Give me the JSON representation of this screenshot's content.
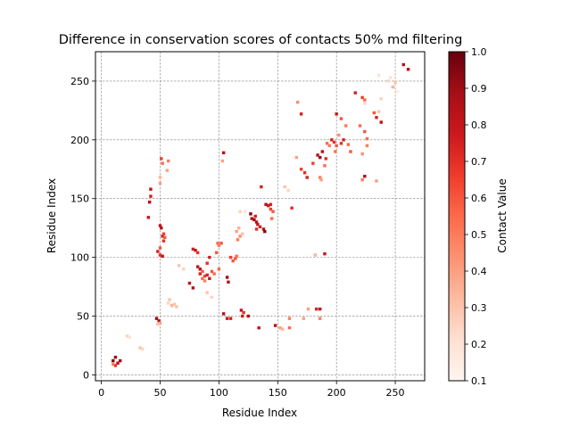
{
  "chart_data": {
    "type": "heatmap",
    "title": "Difference in conservation scores of contacts 50% md filtering",
    "xlabel": "Residue Index",
    "ylabel": "Residue Index",
    "xlim": [
      -5,
      275
    ],
    "ylim": [
      -5,
      275
    ],
    "xticks": [
      0,
      50,
      100,
      150,
      200,
      250
    ],
    "yticks": [
      0,
      50,
      100,
      150,
      200,
      250
    ],
    "grid": true,
    "colormap": "Reds",
    "colormap_stops": [
      "#fff5f0",
      "#fee0d2",
      "#fcbba1",
      "#fc9272",
      "#fb6a4a",
      "#ef3b2c",
      "#cb181d",
      "#a50f15",
      "#67000d"
    ],
    "colorbar": {
      "label": "Contact Value",
      "min": 0.1,
      "max": 1.0,
      "ticks": [
        0.1,
        0.2,
        0.3,
        0.4,
        0.5,
        0.6,
        0.7,
        0.8,
        0.9,
        1.0
      ]
    },
    "points": [
      [
        10,
        12,
        0.95
      ],
      [
        12,
        15,
        0.9
      ],
      [
        14,
        10,
        0.85
      ],
      [
        16,
        12,
        0.9
      ],
      [
        12,
        8,
        0.7
      ],
      [
        10,
        9,
        0.5
      ],
      [
        22,
        33,
        0.25
      ],
      [
        24,
        32,
        0.2
      ],
      [
        33,
        23,
        0.3
      ],
      [
        35,
        22,
        0.25
      ],
      [
        47,
        48,
        0.9
      ],
      [
        49,
        46,
        0.85
      ],
      [
        50,
        44,
        0.4
      ],
      [
        48,
        43,
        0.3
      ],
      [
        40,
        134,
        0.8
      ],
      [
        41,
        147,
        0.85
      ],
      [
        42,
        152,
        0.75
      ],
      [
        42,
        158,
        0.8
      ],
      [
        48,
        105,
        0.75
      ],
      [
        50,
        102,
        0.7
      ],
      [
        52,
        101,
        0.8
      ],
      [
        50,
        108,
        0.6
      ],
      [
        50,
        127,
        0.8
      ],
      [
        51,
        125,
        0.85
      ],
      [
        52,
        118,
        0.75
      ],
      [
        53,
        114,
        0.7
      ],
      [
        53,
        120,
        0.65
      ],
      [
        54,
        117,
        0.6
      ],
      [
        50,
        163,
        0.4
      ],
      [
        50,
        168,
        0.35
      ],
      [
        51,
        184,
        0.65
      ],
      [
        52,
        180,
        0.55
      ],
      [
        56,
        174,
        0.4
      ],
      [
        57,
        182,
        0.5
      ],
      [
        57,
        61,
        0.25
      ],
      [
        58,
        64,
        0.3
      ],
      [
        60,
        59,
        0.35
      ],
      [
        62,
        60,
        0.3
      ],
      [
        64,
        58,
        0.3
      ],
      [
        66,
        93,
        0.3
      ],
      [
        70,
        90,
        0.25
      ],
      [
        75,
        78,
        0.8
      ],
      [
        78,
        74,
        0.85
      ],
      [
        78,
        107,
        0.75
      ],
      [
        80,
        106,
        0.8
      ],
      [
        82,
        104,
        0.7
      ],
      [
        82,
        92,
        0.8
      ],
      [
        84,
        90,
        0.85
      ],
      [
        84,
        86,
        0.75
      ],
      [
        86,
        88,
        0.6
      ],
      [
        88,
        84,
        0.65
      ],
      [
        86,
        82,
        0.55
      ],
      [
        88,
        80,
        0.5
      ],
      [
        90,
        85,
        0.75
      ],
      [
        92,
        82,
        0.8
      ],
      [
        94,
        88,
        0.6
      ],
      [
        96,
        86,
        0.55
      ],
      [
        90,
        95,
        0.7
      ],
      [
        92,
        100,
        0.75
      ],
      [
        90,
        70,
        0.3
      ],
      [
        94,
        66,
        0.25
      ],
      [
        98,
        104,
        0.6
      ],
      [
        99,
        112,
        0.55
      ],
      [
        100,
        110,
        0.5
      ],
      [
        102,
        112,
        0.6
      ],
      [
        100,
        90,
        0.55
      ],
      [
        103,
        182,
        0.4
      ],
      [
        104,
        189,
        0.85
      ],
      [
        104,
        52,
        0.85
      ],
      [
        107,
        83,
        0.9
      ],
      [
        108,
        79,
        0.85
      ],
      [
        107,
        48,
        0.8
      ],
      [
        110,
        48,
        0.75
      ],
      [
        110,
        100,
        0.65
      ],
      [
        112,
        97,
        0.6
      ],
      [
        114,
        99,
        0.6
      ],
      [
        115,
        101,
        0.55
      ],
      [
        115,
        122,
        0.4
      ],
      [
        116,
        115,
        0.5
      ],
      [
        118,
        118,
        0.45
      ],
      [
        117,
        125,
        0.35
      ],
      [
        120,
        120,
        0.3
      ],
      [
        118,
        139,
        0.25
      ],
      [
        122,
        139,
        0.2
      ],
      [
        119,
        55,
        0.8
      ],
      [
        121,
        53,
        0.7
      ],
      [
        120,
        50,
        0.75
      ],
      [
        125,
        50,
        0.85
      ],
      [
        127,
        137,
        0.95
      ],
      [
        128,
        133,
        0.85
      ],
      [
        130,
        132,
        0.9
      ],
      [
        132,
        130,
        0.85
      ],
      [
        131,
        135,
        0.75
      ],
      [
        133,
        128,
        0.8
      ],
      [
        135,
        126,
        0.75
      ],
      [
        132,
        124,
        0.7
      ],
      [
        136,
        160,
        0.75
      ],
      [
        134,
        40,
        0.8
      ],
      [
        138,
        124,
        0.85
      ],
      [
        139,
        122,
        0.95
      ],
      [
        140,
        145,
        0.85
      ],
      [
        142,
        144,
        0.8
      ],
      [
        144,
        145,
        0.75
      ],
      [
        144,
        141,
        0.65
      ],
      [
        146,
        139,
        0.6
      ],
      [
        145,
        133,
        0.55
      ],
      [
        148,
        42,
        0.85
      ],
      [
        152,
        40,
        0.4
      ],
      [
        154,
        39,
        0.35
      ],
      [
        156,
        160,
        0.3
      ],
      [
        159,
        157,
        0.25
      ],
      [
        162,
        142,
        0.7
      ],
      [
        160,
        48,
        0.5
      ],
      [
        160,
        40,
        0.55
      ],
      [
        166,
        185,
        0.4
      ],
      [
        167,
        232,
        0.45
      ],
      [
        170,
        175,
        0.65
      ],
      [
        170,
        222,
        0.75
      ],
      [
        172,
        48,
        0.4
      ],
      [
        173,
        172,
        0.7
      ],
      [
        175,
        168,
        0.75
      ],
      [
        176,
        56,
        0.4
      ],
      [
        180,
        180,
        0.65
      ],
      [
        182,
        102,
        0.35
      ],
      [
        183,
        56,
        0.75
      ],
      [
        184,
        187,
        0.85
      ],
      [
        186,
        185,
        0.9
      ],
      [
        186,
        56,
        0.8
      ],
      [
        186,
        48,
        0.5
      ],
      [
        186,
        168,
        0.5
      ],
      [
        187,
        166,
        0.4
      ],
      [
        188,
        190,
        0.85
      ],
      [
        190,
        103,
        0.8
      ],
      [
        190,
        178,
        0.55
      ],
      [
        191,
        184,
        0.7
      ],
      [
        192,
        197,
        0.55
      ],
      [
        194,
        195,
        0.5
      ],
      [
        196,
        200,
        0.75
      ],
      [
        198,
        198,
        0.7
      ],
      [
        199,
        190,
        0.55
      ],
      [
        200,
        195,
        0.6
      ],
      [
        202,
        204,
        0.45
      ],
      [
        200,
        222,
        0.8
      ],
      [
        204,
        218,
        0.6
      ],
      [
        206,
        200,
        0.75
      ],
      [
        204,
        197,
        0.7
      ],
      [
        208,
        212,
        0.5
      ],
      [
        210,
        196,
        0.55
      ],
      [
        212,
        190,
        0.6
      ],
      [
        216,
        240,
        0.75
      ],
      [
        220,
        212,
        0.55
      ],
      [
        222,
        166,
        0.5
      ],
      [
        224,
        169,
        0.85
      ],
      [
        222,
        236,
        0.65
      ],
      [
        224,
        234,
        0.55
      ],
      [
        224,
        231,
        0.25
      ],
      [
        224,
        207,
        0.6
      ],
      [
        226,
        201,
        0.55
      ],
      [
        226,
        195,
        0.5
      ],
      [
        222,
        188,
        0.45
      ],
      [
        234,
        165,
        0.4
      ],
      [
        232,
        223,
        0.6
      ],
      [
        234,
        219,
        0.75
      ],
      [
        236,
        224,
        0.3
      ],
      [
        238,
        215,
        0.8
      ],
      [
        236,
        255,
        0.2
      ],
      [
        238,
        235,
        0.25
      ],
      [
        244,
        250,
        0.25
      ],
      [
        246,
        253,
        0.2
      ],
      [
        248,
        245,
        0.35
      ],
      [
        250,
        249,
        0.3
      ],
      [
        252,
        241,
        0.15
      ],
      [
        257,
        264,
        0.85
      ],
      [
        261,
        260,
        0.85
      ]
    ]
  }
}
